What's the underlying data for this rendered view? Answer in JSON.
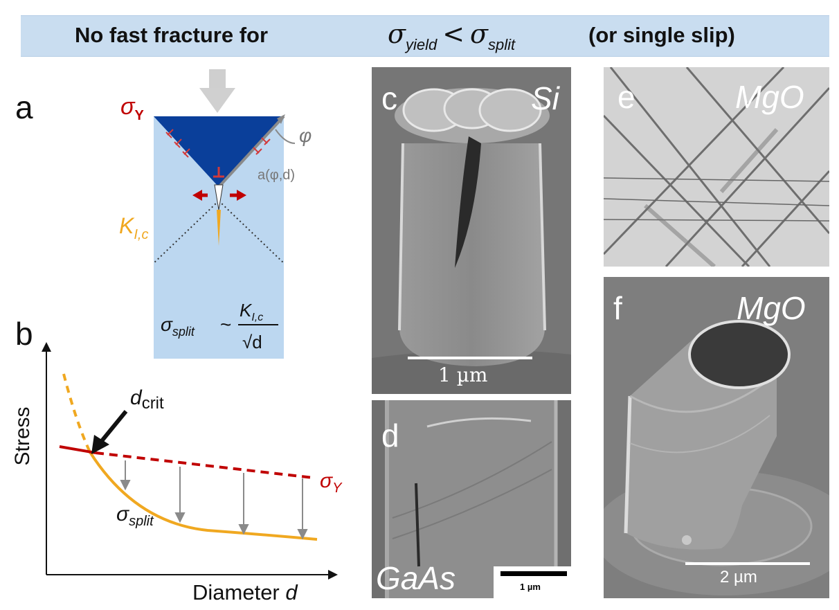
{
  "banner": {
    "left_text": "No fast fracture for",
    "sigma1": "σ",
    "sub1": "yield",
    "lt": "<",
    "sigma2": "σ",
    "sub2": "split",
    "right_text": "(or single slip)"
  },
  "panel_a": {
    "letter": "a",
    "sigma_y": "σ",
    "sigma_y_sub": "Y",
    "k_label": "K",
    "k_sub": "I,c",
    "phi": "φ",
    "a_label": "a(φ,d)",
    "formula_lhs": "σ",
    "formula_lhs_sub": "split",
    "formula_tilde": "~",
    "formula_num": "K",
    "formula_num_sub": "I,c",
    "formula_den": "√d"
  },
  "panel_b": {
    "letter": "b",
    "ylabel": "Stress",
    "xlabel": "Diameter",
    "xlabel_var": "d",
    "dcrit": "d",
    "dcrit_sub": "crit",
    "sigma_y": "σ",
    "sigma_y_sub": "Y",
    "sigma_split": "σ",
    "sigma_split_sub": "split",
    "colors": {
      "yield": "#c00000",
      "split": "#f0a820",
      "arrows": "#8a8a8a"
    }
  },
  "panel_c": {
    "letter": "c",
    "material": "Si",
    "scale": "1 µm"
  },
  "panel_d": {
    "letter": "d",
    "material": "GaAs",
    "scale": "1 µm"
  },
  "panel_e": {
    "letter": "e",
    "material": "MgO"
  },
  "panel_f": {
    "letter": "f",
    "material": "MgO",
    "scale": "2 µm"
  }
}
